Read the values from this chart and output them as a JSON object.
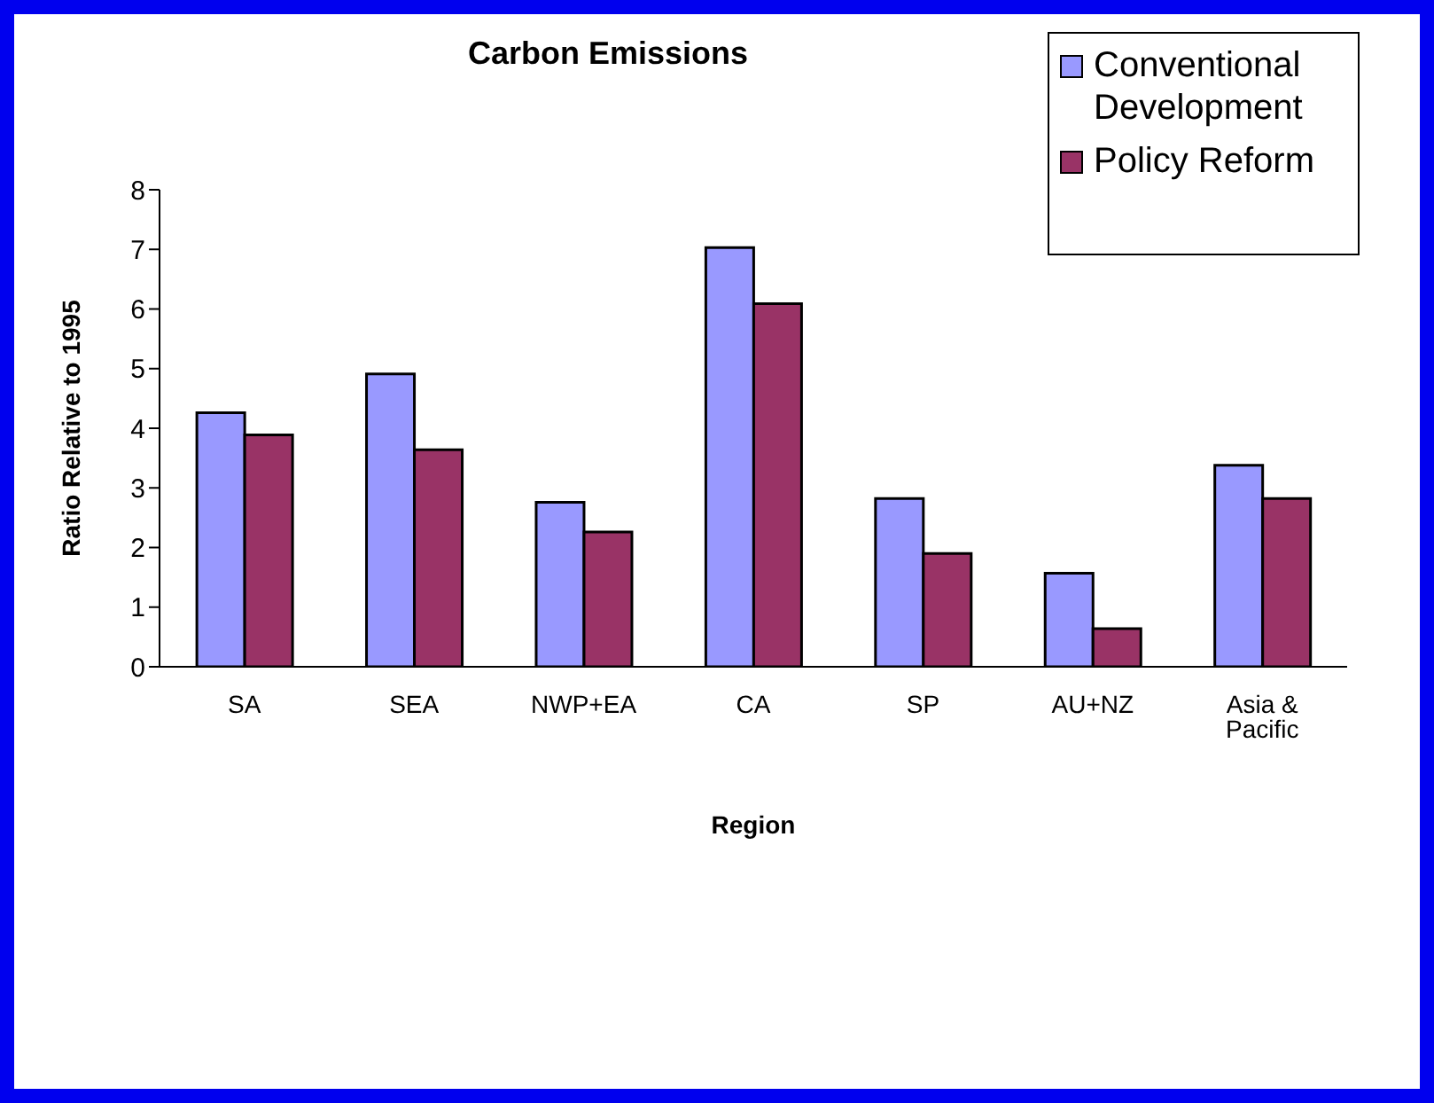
{
  "chart_data": {
    "type": "bar",
    "title": "Carbon Emissions",
    "xlabel": "Region",
    "ylabel": "Ratio Relative to 1995",
    "categories": [
      "SA",
      "SEA",
      "NWP+EA",
      "CA",
      "SP",
      "AU+NZ",
      "Asia & Pacific"
    ],
    "series": [
      {
        "name": "Conventional Development",
        "color": "#9999ff",
        "values": [
          4.26,
          4.91,
          2.76,
          7.03,
          2.82,
          1.57,
          3.38
        ]
      },
      {
        "name": "Policy Reform",
        "color": "#993366",
        "values": [
          3.89,
          3.64,
          2.26,
          6.09,
          1.9,
          0.64,
          2.82
        ]
      }
    ],
    "ylim": [
      0,
      8
    ],
    "yticks": [
      0,
      1,
      2,
      3,
      4,
      5,
      6,
      7,
      8
    ],
    "grid": false,
    "legend": "top right"
  }
}
